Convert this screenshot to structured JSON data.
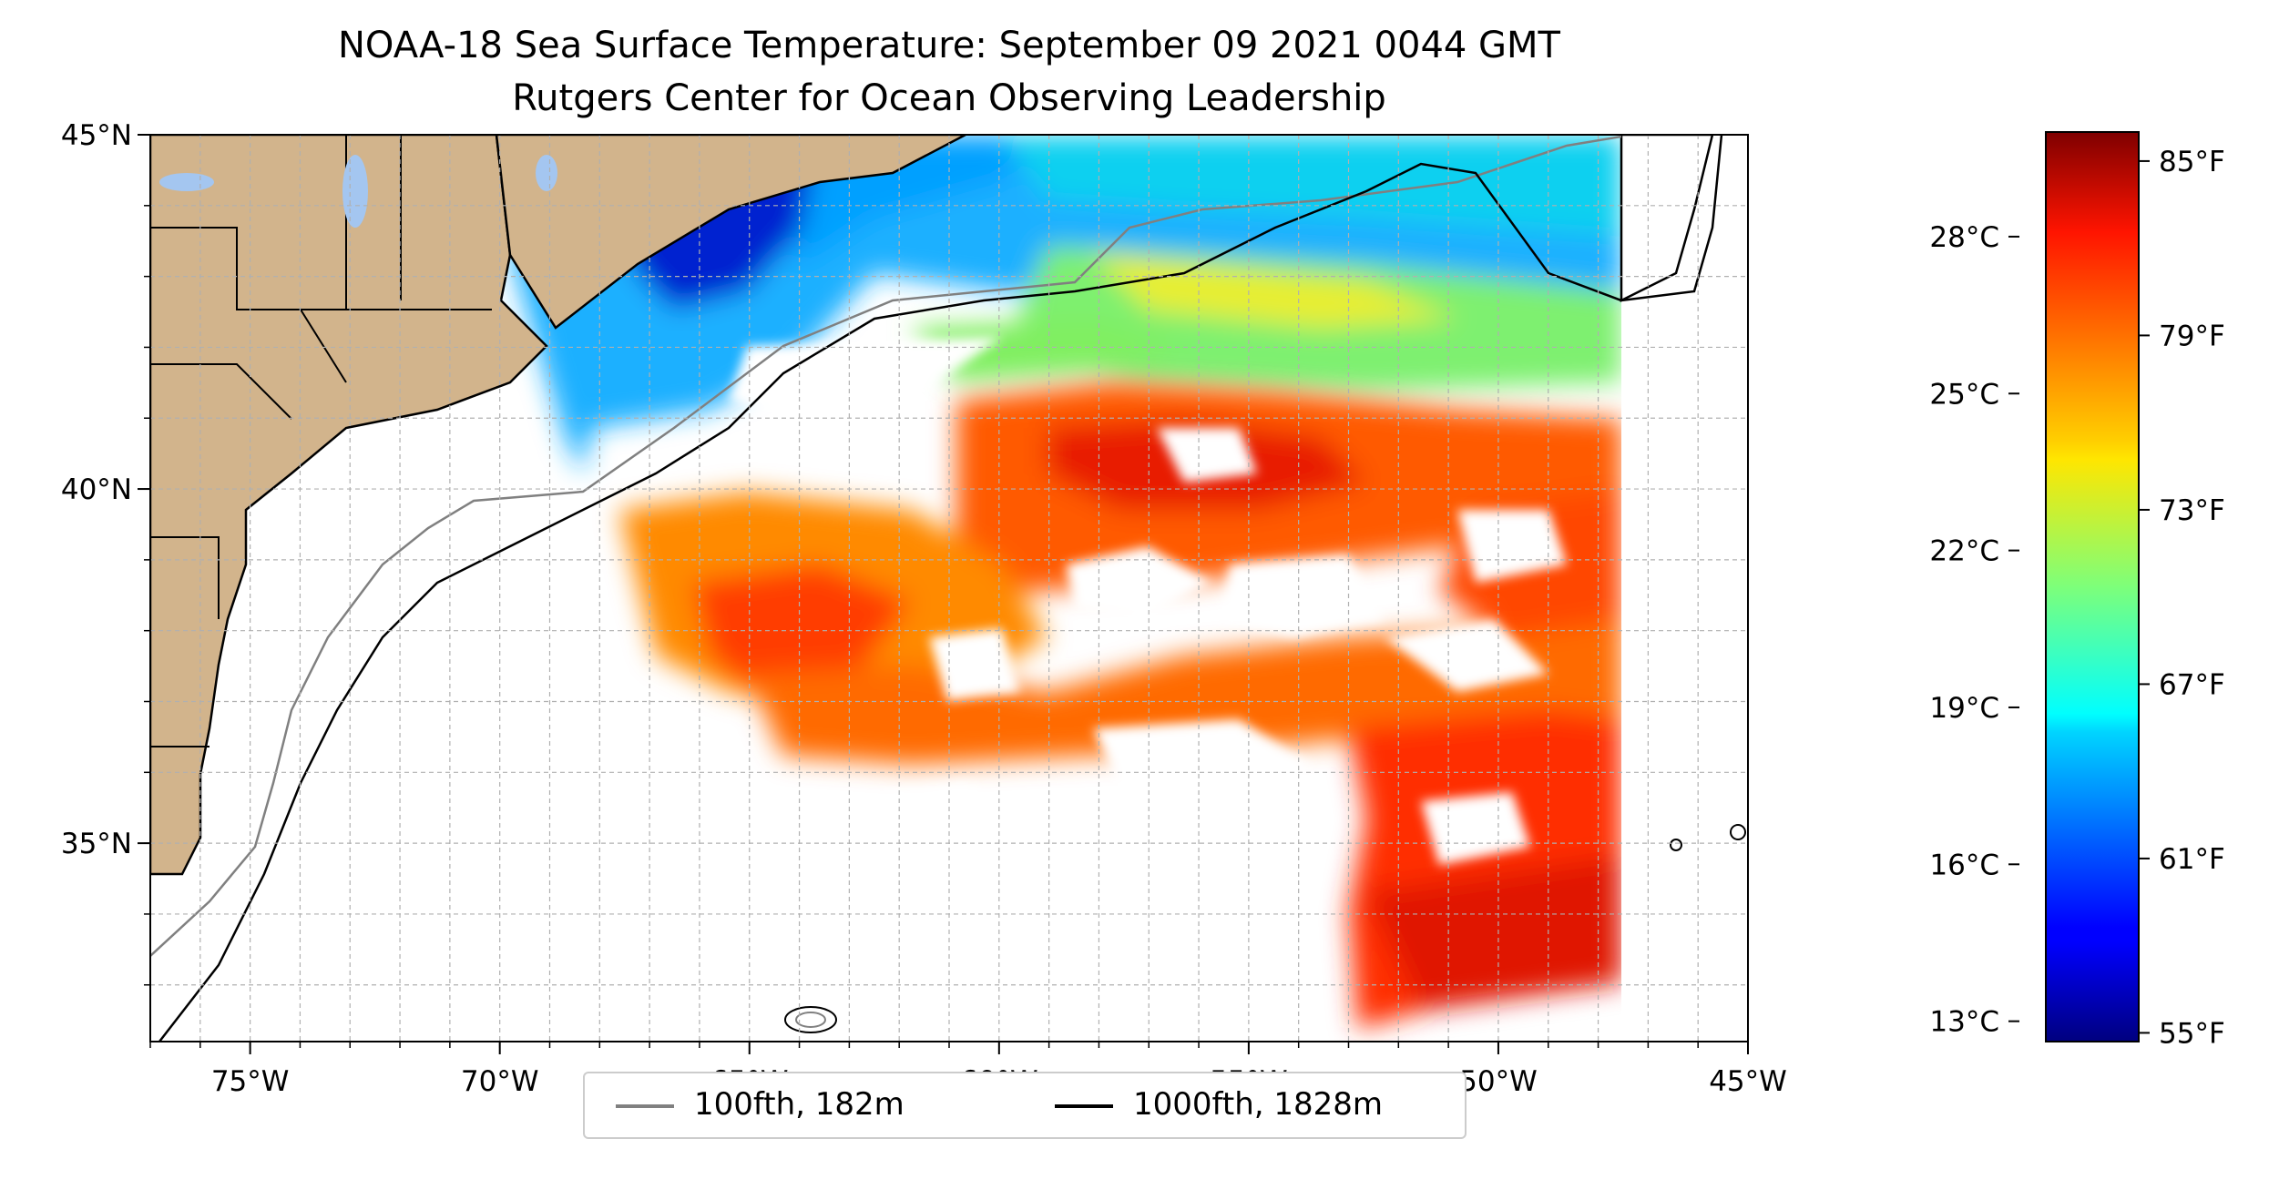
{
  "title": {
    "line1": "NOAA-18 Sea Surface Temperature: September 09 2021 0044 GMT",
    "line2": "Rutgers Center for Ocean Observing Leadership"
  },
  "map": {
    "lon_range": [
      -77,
      -45
    ],
    "lat_range": [
      32.2,
      45
    ],
    "lon_ticks": [
      {
        "value": -75,
        "label": "75°W"
      },
      {
        "value": -70,
        "label": "70°W"
      },
      {
        "value": -65,
        "label": "65°W"
      },
      {
        "value": -60,
        "label": "60°W"
      },
      {
        "value": -55,
        "label": "55°W"
      },
      {
        "value": -50,
        "label": "50°W"
      },
      {
        "value": -45,
        "label": "45°W"
      }
    ],
    "lat_ticks": [
      {
        "value": 45,
        "label": "45°N"
      },
      {
        "value": 40,
        "label": "40°N"
      },
      {
        "value": 35,
        "label": "35°N"
      }
    ],
    "grid": true,
    "land_color": "#d2b48c",
    "water_color": "#a4c6f0"
  },
  "colorbar": {
    "colormap": "jet",
    "celsius_ticks": [
      {
        "value": 13,
        "label": "13°C"
      },
      {
        "value": 16,
        "label": "16°C"
      },
      {
        "value": 19,
        "label": "19°C"
      },
      {
        "value": 22,
        "label": "22°C"
      },
      {
        "value": 25,
        "label": "25°C"
      },
      {
        "value": 28,
        "label": "28°C"
      }
    ],
    "fahrenheit_ticks": [
      {
        "value": 55,
        "label": "55°F"
      },
      {
        "value": 61,
        "label": "61°F"
      },
      {
        "value": 67,
        "label": "67°F"
      },
      {
        "value": 73,
        "label": "73°F"
      },
      {
        "value": 79,
        "label": "79°F"
      },
      {
        "value": 85,
        "label": "85°F"
      }
    ],
    "range_f": [
      54.7,
      86
    ]
  },
  "legend": {
    "items": [
      {
        "label": "100fth, 182m",
        "color": "#808080"
      },
      {
        "label": "1000fth, 1828m",
        "color": "#000000"
      }
    ],
    "placement": "bottom-center"
  }
}
